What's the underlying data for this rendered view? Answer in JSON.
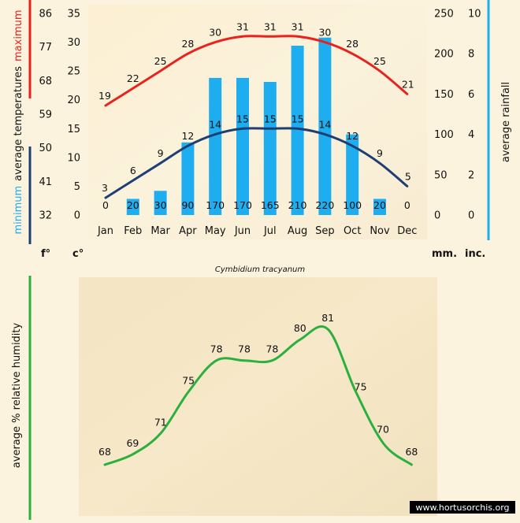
{
  "domain": "Chart",
  "chart_data": [
    {
      "type": "bar+line",
      "title": "Cymbidium tracyanum",
      "categories": [
        "Jan",
        "Feb",
        "Mar",
        "Apr",
        "May",
        "Jun",
        "Jul",
        "Aug",
        "Sep",
        "Oct",
        "Nov",
        "Dec"
      ],
      "rainfall_mm": [
        0,
        20,
        30,
        90,
        170,
        170,
        165,
        210,
        220,
        100,
        20,
        0
      ],
      "series": [
        {
          "name": "maximum",
          "color": "#e8231e",
          "values": [
            19,
            22,
            25,
            28,
            30,
            31,
            31,
            31,
            30,
            28,
            25,
            21
          ]
        },
        {
          "name": "minimum",
          "color": "#1f3f74",
          "values": [
            3,
            6,
            9,
            12,
            14,
            15,
            15,
            15,
            14,
            12,
            9,
            5
          ]
        }
      ],
      "bar_color": "#1eaef0",
      "ylabel_left_parts": {
        "max": "maximum",
        "avg": "average temperatures",
        "min": "minimum"
      },
      "ylabel_right": "average rainfall",
      "ylim_c": [
        0,
        35
      ],
      "ylim_mm": [
        0,
        250
      ],
      "yticks_c": [
        "0",
        "5",
        "10",
        "15",
        "20",
        "25",
        "30",
        "35"
      ],
      "yticks_f": [
        "32",
        "41",
        "50",
        "59",
        "68",
        "77",
        "86"
      ],
      "yticks_mm": [
        "0",
        "50",
        "100",
        "150",
        "200",
        "250"
      ],
      "yticks_inch": [
        "0",
        "2",
        "4",
        "6",
        "8",
        "10"
      ],
      "unit_f": "f°",
      "unit_c": "c°",
      "unit_mm": "mm.",
      "unit_inch": "inc."
    },
    {
      "type": "line",
      "categories": [
        "Jan",
        "Feb",
        "Mar",
        "Apr",
        "May",
        "Jun",
        "Jul",
        "Aug",
        "Sep",
        "Oct",
        "Nov",
        "Dec"
      ],
      "series": [
        {
          "name": "average % relative humidity",
          "color": "#2bb03e",
          "values": [
            68,
            69,
            71,
            75,
            78,
            78,
            78,
            80,
            81,
            75,
            70,
            68
          ]
        }
      ],
      "ylabel": "average %  relative humidity"
    }
  ],
  "watermark": "www.hortusorchis.org"
}
